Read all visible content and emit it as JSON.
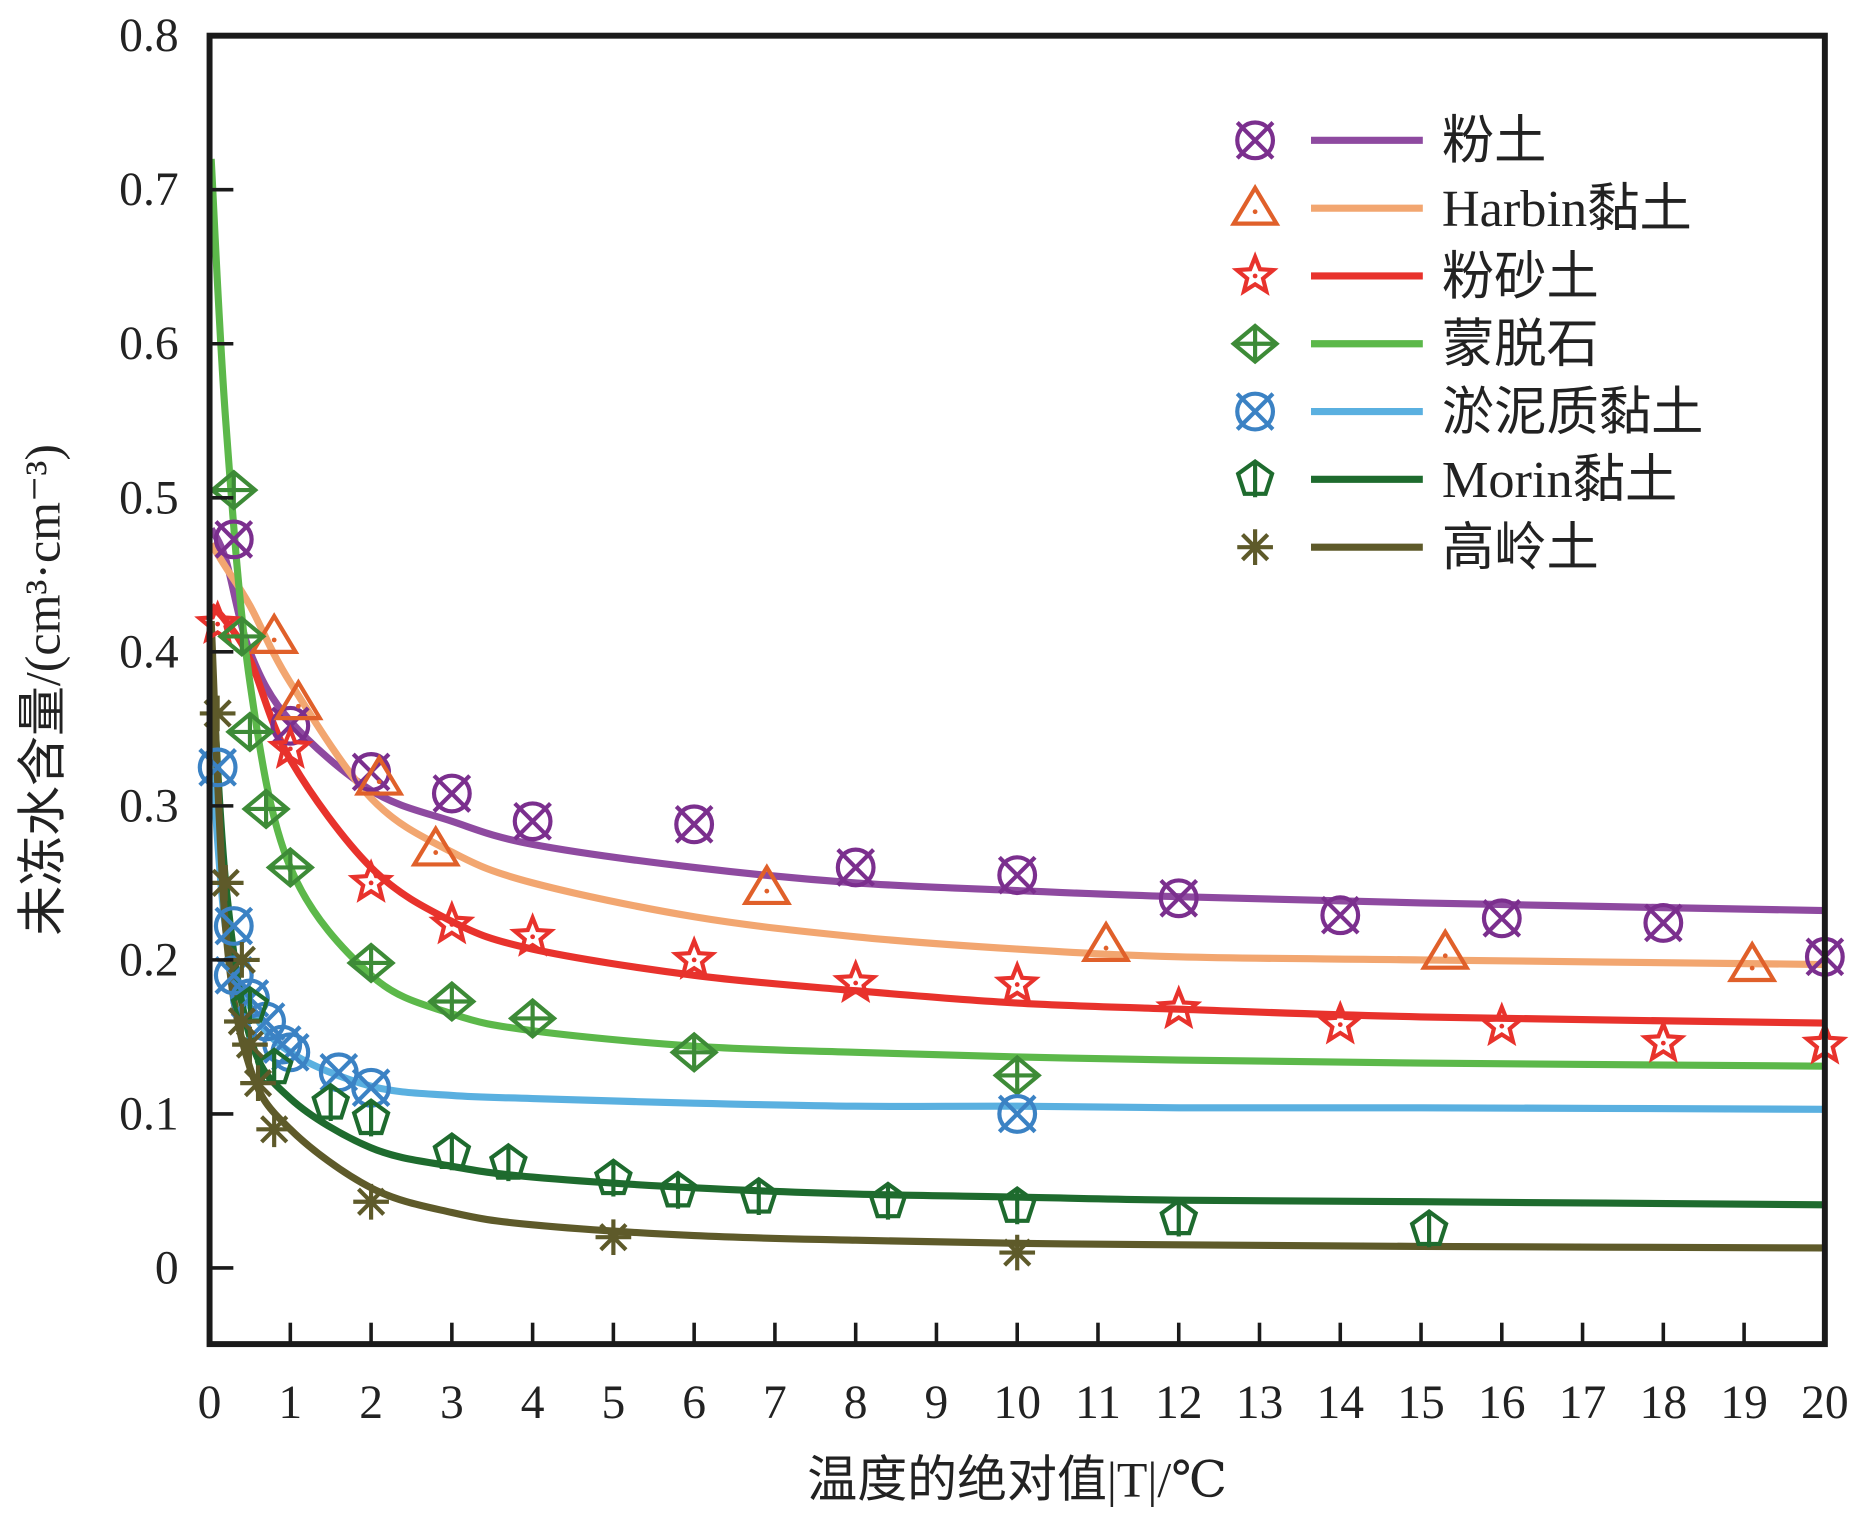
{
  "chart_data": {
    "type": "scatter",
    "xlabel": "温度的绝对值|T|/℃",
    "ylabel": "未冻水含量/(cm³·cm⁻³)",
    "xlim": [
      0,
      20
    ],
    "ylim": [
      -0.05,
      0.8
    ],
    "xticks": [
      "0",
      "1",
      "2",
      "3",
      "4",
      "5",
      "6",
      "7",
      "8",
      "9",
      "10",
      "11",
      "12",
      "13",
      "14",
      "15",
      "16",
      "17",
      "18",
      "19",
      "20"
    ],
    "yticks": [
      "0",
      "0.1",
      "0.2",
      "0.3",
      "0.4",
      "0.5",
      "0.6",
      "0.7",
      "0.8"
    ],
    "legend_position": "top-right",
    "curve_x": [
      0.02,
      0.2,
      0.5,
      1,
      2,
      3,
      4,
      6,
      8,
      10,
      12,
      15,
      20
    ],
    "series": [
      {
        "name": "粉土",
        "marker": "circle-x",
        "marker_color": "#7b2f8e",
        "line_color": "#8e4aa0",
        "x": [
          0.3,
          1,
          2,
          3,
          4,
          6,
          8,
          10,
          12,
          14,
          16,
          18,
          20
        ],
        "y": [
          0.473,
          0.352,
          0.322,
          0.308,
          0.29,
          0.288,
          0.26,
          0.255,
          0.24,
          0.229,
          0.227,
          0.224,
          0.202
        ],
        "curve": [
          0.48,
          0.46,
          0.4,
          0.355,
          0.31,
          0.29,
          0.275,
          0.26,
          0.25,
          0.245,
          0.241,
          0.237,
          0.232
        ]
      },
      {
        "name": "Harbin黏土",
        "marker": "triangle",
        "marker_color": "#e0602a",
        "line_color": "#f2a670",
        "x": [
          0.8,
          1.1,
          2.1,
          2.8,
          6.9,
          11.1,
          15.3,
          19.1
        ],
        "y": [
          0.41,
          0.367,
          0.318,
          0.272,
          0.247,
          0.21,
          0.205,
          0.197
        ],
        "curve": [
          0.47,
          0.455,
          0.43,
          0.38,
          0.305,
          0.27,
          0.25,
          0.228,
          0.215,
          0.207,
          0.202,
          0.2,
          0.197
        ]
      },
      {
        "name": "粉砂土",
        "marker": "star",
        "marker_color": "#e8322c",
        "line_color": "#e8322c",
        "x": [
          0.1,
          1,
          2,
          3,
          4,
          6,
          8,
          10,
          12,
          14,
          16,
          18,
          20
        ],
        "y": [
          0.418,
          0.337,
          0.25,
          0.223,
          0.215,
          0.2,
          0.185,
          0.184,
          0.168,
          0.158,
          0.157,
          0.146,
          0.145
        ],
        "curve": [
          0.43,
          0.42,
          0.395,
          0.33,
          0.26,
          0.225,
          0.207,
          0.19,
          0.18,
          0.172,
          0.168,
          0.163,
          0.159
        ]
      },
      {
        "name": "蒙脱石",
        "marker": "diamond-plus",
        "marker_color": "#3d8b37",
        "line_color": "#5cb84a",
        "x": [
          0.3,
          0.4,
          0.5,
          0.7,
          1,
          2,
          3,
          4,
          6,
          10
        ],
        "y": [
          0.505,
          0.41,
          0.348,
          0.298,
          0.26,
          0.198,
          0.173,
          0.162,
          0.14,
          0.125
        ],
        "curve": [
          0.72,
          0.55,
          0.38,
          0.26,
          0.19,
          0.165,
          0.154,
          0.144,
          0.14,
          0.137,
          0.135,
          0.133,
          0.131
        ]
      },
      {
        "name": "淤泥质黏土",
        "marker": "circle-x",
        "marker_color": "#3b82c4",
        "line_color": "#5ab0e0",
        "x": [
          0.1,
          0.3,
          0.3,
          0.5,
          0.7,
          0.9,
          1,
          1.6,
          2,
          10
        ],
        "y": [
          0.325,
          0.222,
          0.19,
          0.175,
          0.16,
          0.145,
          0.14,
          0.127,
          0.117,
          0.1
        ],
        "curve": [
          0.34,
          0.22,
          0.17,
          0.14,
          0.118,
          0.112,
          0.11,
          0.107,
          0.105,
          0.105,
          0.104,
          0.104,
          0.103
        ]
      },
      {
        "name": "Morin黏土",
        "marker": "pentagon",
        "marker_color": "#1e6b2e",
        "line_color": "#1e6b2e",
        "x": [
          0.5,
          0.8,
          1.5,
          2,
          3,
          3.7,
          5,
          5.8,
          6.8,
          8.4,
          10,
          12,
          15.1
        ],
        "y": [
          0.17,
          0.13,
          0.107,
          0.097,
          0.075,
          0.068,
          0.058,
          0.05,
          0.046,
          0.043,
          0.04,
          0.032,
          0.025
        ],
        "curve": [
          0.4,
          0.25,
          0.15,
          0.11,
          0.078,
          0.066,
          0.059,
          0.052,
          0.048,
          0.046,
          0.044,
          0.043,
          0.041
        ]
      },
      {
        "name": "高岭土",
        "marker": "asterisk",
        "marker_color": "#5e5a2a",
        "line_color": "#5e5a2a",
        "x": [
          0.1,
          0.2,
          0.4,
          0.4,
          0.5,
          0.6,
          0.8,
          2,
          5,
          10
        ],
        "y": [
          0.36,
          0.25,
          0.2,
          0.16,
          0.145,
          0.12,
          0.09,
          0.043,
          0.02,
          0.01
        ],
        "curve": [
          0.42,
          0.22,
          0.13,
          0.09,
          0.052,
          0.036,
          0.028,
          0.021,
          0.018,
          0.016,
          0.015,
          0.014,
          0.013
        ]
      }
    ]
  }
}
